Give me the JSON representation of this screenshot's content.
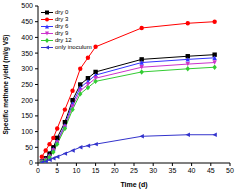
{
  "chart_data": {
    "type": "line",
    "x_label": "Time (d)",
    "y_label": "Specific methane yield (ml/g VS)",
    "x": [
      1,
      2,
      3,
      4,
      5,
      7,
      9,
      11,
      13,
      15,
      27,
      39,
      46
    ],
    "xlim": [
      0,
      50
    ],
    "xticks": [
      0,
      5,
      10,
      15,
      20,
      25,
      30,
      35,
      40,
      45,
      50
    ],
    "ylim": [
      0,
      500
    ],
    "yticks": [
      0,
      50,
      100,
      150,
      200,
      250,
      300,
      350,
      400,
      450,
      500
    ],
    "grid": false,
    "legend": "upper left",
    "series": [
      {
        "name": "dry 0",
        "color": "#000000",
        "marker": "square",
        "values": [
          5,
          15,
          30,
          50,
          80,
          130,
          200,
          250,
          270,
          290,
          330,
          340,
          345
        ]
      },
      {
        "name": "dry 3",
        "color": "#ff0000",
        "marker": "circle",
        "values": [
          20,
          40,
          60,
          80,
          110,
          170,
          230,
          300,
          335,
          370,
          430,
          445,
          450
        ]
      },
      {
        "name": "dry 6",
        "color": "#3333ff",
        "marker": "triangle",
        "values": [
          5,
          12,
          25,
          45,
          70,
          120,
          190,
          240,
          260,
          280,
          320,
          330,
          335
        ]
      },
      {
        "name": "dry 9",
        "color": "#cc33cc",
        "marker": "triangle-down",
        "values": [
          3,
          10,
          20,
          40,
          65,
          115,
          180,
          230,
          250,
          270,
          305,
          315,
          320
        ]
      },
      {
        "name": "dry 12",
        "color": "#33cc33",
        "marker": "diamond",
        "values": [
          2,
          8,
          18,
          35,
          60,
          110,
          170,
          220,
          240,
          260,
          290,
          300,
          305
        ]
      },
      {
        "name": "only inoculum",
        "color": "#3333cc",
        "marker": "triangle-left",
        "values": [
          2,
          5,
          10,
          15,
          20,
          30,
          40,
          50,
          55,
          60,
          85,
          90,
          90
        ]
      }
    ]
  }
}
